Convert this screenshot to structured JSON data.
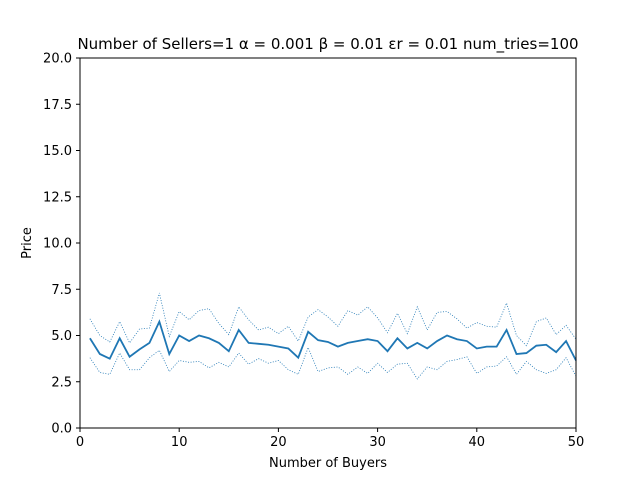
{
  "chart_data": {
    "type": "line",
    "title": "Number of Sellers=1  α = 0.001  β = 0.01  εr = 0.01 num_tries=100",
    "xlabel": "Number of Buyers",
    "ylabel": "Price",
    "xlim": [
      0,
      50
    ],
    "ylim": [
      0,
      20
    ],
    "xticks": [
      "0",
      "10",
      "20",
      "30",
      "40",
      "50"
    ],
    "yticks": [
      "0.0",
      "2.5",
      "5.0",
      "7.5",
      "10.0",
      "12.5",
      "15.0",
      "17.5",
      "20.0"
    ],
    "grid": false,
    "colors": {
      "line": "#1f77b4"
    },
    "x": [
      1,
      2,
      3,
      4,
      5,
      6,
      7,
      8,
      9,
      10,
      11,
      12,
      13,
      14,
      15,
      16,
      17,
      18,
      19,
      20,
      21,
      22,
      23,
      24,
      25,
      26,
      27,
      28,
      29,
      30,
      31,
      32,
      33,
      34,
      35,
      36,
      37,
      38,
      39,
      40,
      41,
      42,
      43,
      44,
      45,
      46,
      47,
      48,
      49,
      50
    ],
    "series": [
      {
        "style": "solid",
        "values": [
          4.85,
          4.0,
          3.75,
          4.85,
          3.85,
          4.25,
          4.6,
          5.75,
          4.0,
          5.0,
          4.7,
          5.0,
          4.85,
          4.6,
          4.15,
          5.3,
          4.6,
          4.55,
          4.5,
          4.4,
          4.3,
          3.8,
          5.2,
          4.75,
          4.65,
          4.4,
          4.6,
          4.7,
          4.8,
          4.7,
          4.15,
          4.85,
          4.3,
          4.6,
          4.3,
          4.7,
          5.0,
          4.8,
          4.7,
          4.3,
          4.4,
          4.4,
          5.3,
          4.0,
          4.05,
          4.45,
          4.5,
          4.1,
          4.7,
          3.65
        ]
      },
      {
        "style": "dotted",
        "values": [
          5.9,
          5.0,
          4.65,
          5.75,
          4.6,
          5.35,
          5.4,
          7.3,
          4.95,
          6.3,
          5.85,
          6.35,
          6.45,
          5.65,
          5.05,
          6.55,
          5.85,
          5.3,
          5.45,
          5.1,
          5.5,
          4.7,
          6.0,
          6.4,
          6.0,
          5.5,
          6.35,
          6.1,
          6.55,
          5.95,
          5.15,
          6.2,
          5.1,
          6.55,
          5.3,
          6.25,
          6.3,
          5.9,
          5.4,
          5.7,
          5.5,
          5.45,
          6.75,
          5.0,
          4.45,
          5.75,
          5.95,
          5.05,
          5.55,
          4.8
        ]
      },
      {
        "style": "dotted",
        "values": [
          3.8,
          3.0,
          2.9,
          4.05,
          3.15,
          3.15,
          3.8,
          4.2,
          3.05,
          3.65,
          3.55,
          3.6,
          3.25,
          3.55,
          3.3,
          4.05,
          3.45,
          3.75,
          3.5,
          3.65,
          3.15,
          2.9,
          4.35,
          3.05,
          3.25,
          3.3,
          2.9,
          3.3,
          2.95,
          3.5,
          3.0,
          3.45,
          3.5,
          2.65,
          3.3,
          3.15,
          3.6,
          3.7,
          3.85,
          2.95,
          3.3,
          3.35,
          3.85,
          2.9,
          3.6,
          3.15,
          2.95,
          3.15,
          3.8,
          2.8
        ]
      }
    ]
  }
}
